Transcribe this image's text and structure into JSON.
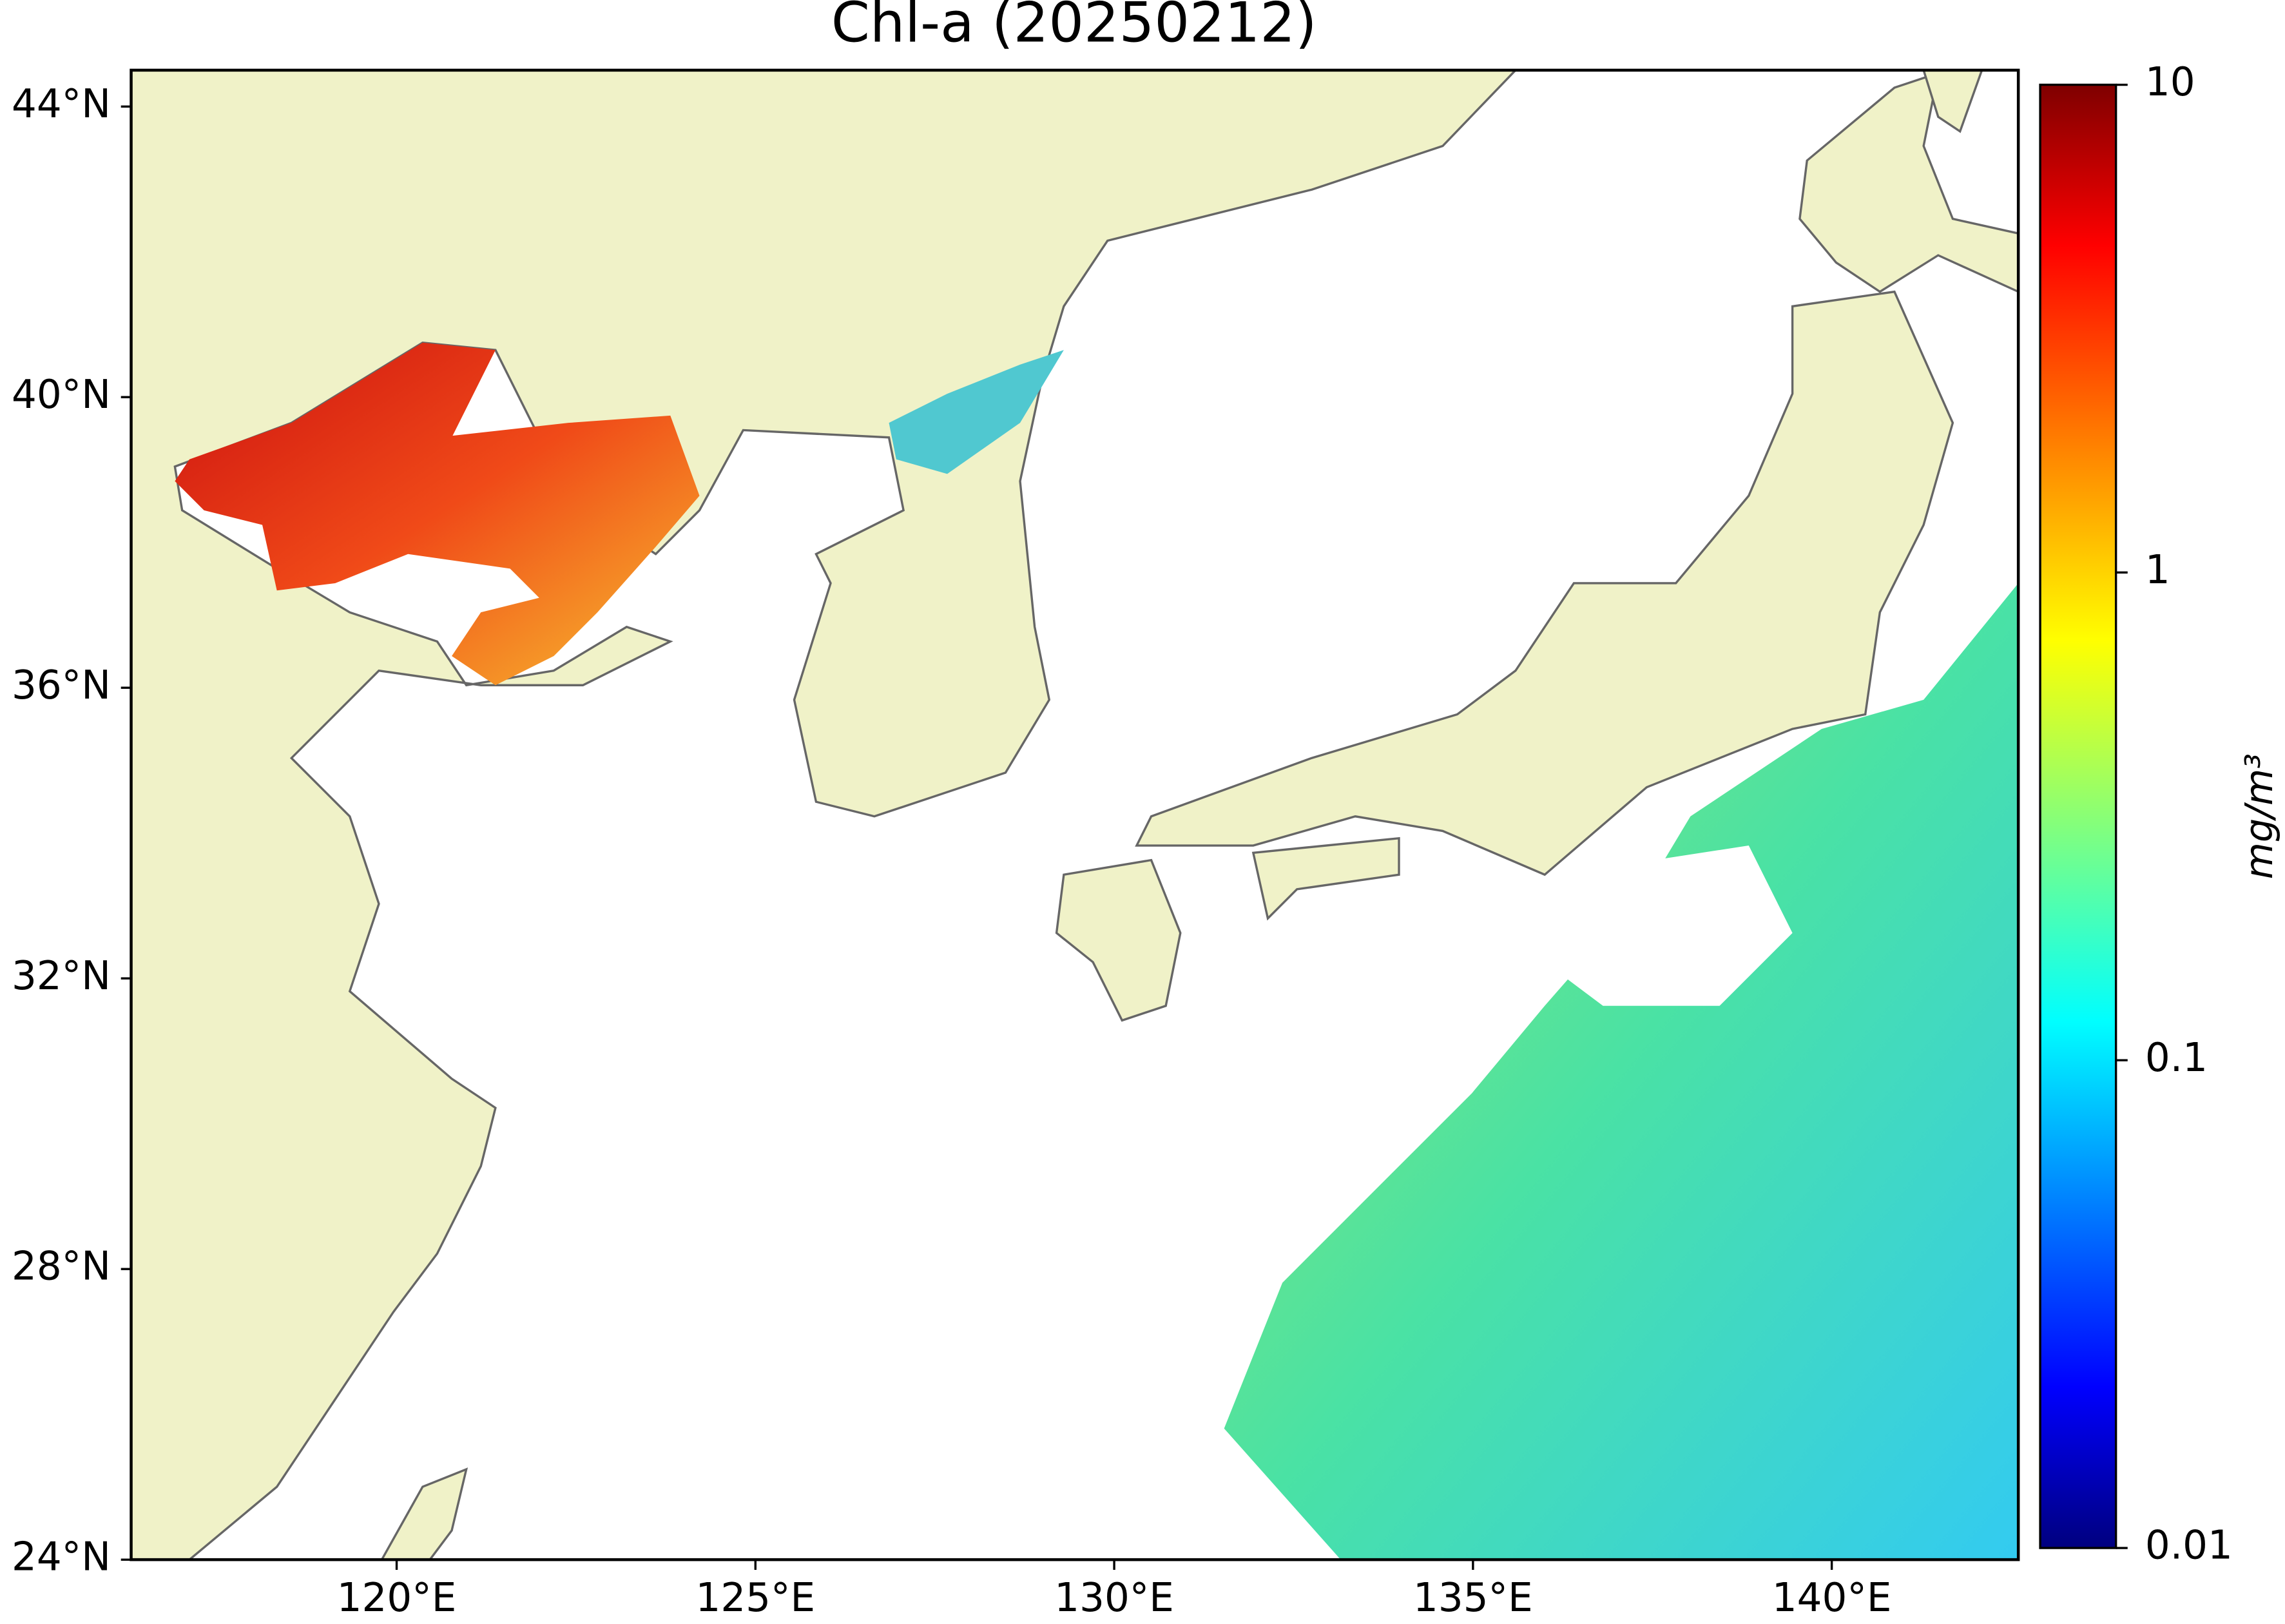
{
  "chart_data": {
    "type": "map",
    "title": "Chl-a (20250212)",
    "xlim": [
      116.3,
      142.6
    ],
    "ylim": [
      24,
      44.5
    ],
    "xticks": [
      {
        "value": 120,
        "label": "120°E"
      },
      {
        "value": 125,
        "label": "125°E"
      },
      {
        "value": 130,
        "label": "130°E"
      },
      {
        "value": 135,
        "label": "135°E"
      },
      {
        "value": 140,
        "label": "140°E"
      }
    ],
    "yticks": [
      {
        "value": 24,
        "label": "24°N"
      },
      {
        "value": 28,
        "label": "28°N"
      },
      {
        "value": 32,
        "label": "32°N"
      },
      {
        "value": 36,
        "label": "36°N"
      },
      {
        "value": 40,
        "label": "40°N"
      },
      {
        "value": 44,
        "label": "44°N"
      }
    ],
    "colorbar": {
      "label": "mg/m³",
      "scale": "log",
      "lim": [
        0.01,
        10
      ],
      "ticks": [
        0.01,
        0.1,
        1,
        10
      ],
      "colormap": "jet"
    },
    "land_color": "#f0f2c8",
    "coast_color": "#666666"
  }
}
